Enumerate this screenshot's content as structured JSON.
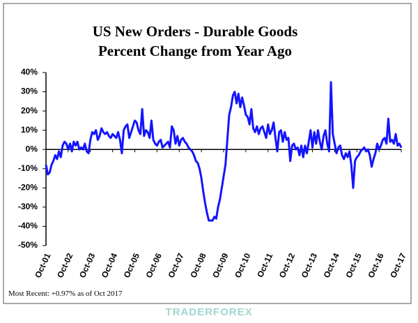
{
  "chart_data": {
    "type": "line",
    "title": "US New Orders - Durable Goods",
    "subtitle": "Percent Change from Year Ago",
    "note": "Most Recent: +0.97% as of Oct 2017",
    "watermark": "TRADERFOREX",
    "categories": [
      "Oct-01",
      null,
      null,
      null,
      null,
      null,
      null,
      null,
      null,
      null,
      null,
      null,
      "Oct-02",
      null,
      null,
      null,
      null,
      null,
      null,
      null,
      null,
      null,
      null,
      null,
      "Oct-03",
      null,
      null,
      null,
      null,
      null,
      null,
      null,
      null,
      null,
      null,
      null,
      "Oct-04",
      null,
      null,
      null,
      null,
      null,
      null,
      null,
      null,
      null,
      null,
      null,
      "Oct-05",
      null,
      null,
      null,
      null,
      null,
      null,
      null,
      null,
      null,
      null,
      null,
      "Oct-06",
      null,
      null,
      null,
      null,
      null,
      null,
      null,
      null,
      null,
      null,
      null,
      "Oct-07",
      null,
      null,
      null,
      null,
      null,
      null,
      null,
      null,
      null,
      null,
      null,
      "Oct-08",
      null,
      null,
      null,
      null,
      null,
      null,
      null,
      null,
      null,
      null,
      null,
      "Oct-09",
      null,
      null,
      null,
      null,
      null,
      null,
      null,
      null,
      null,
      null,
      null,
      "Oct-10",
      null,
      null,
      null,
      null,
      null,
      null,
      null,
      null,
      null,
      null,
      null,
      "Oct-11",
      null,
      null,
      null,
      null,
      null,
      null,
      null,
      null,
      null,
      null,
      null,
      "Oct-12",
      null,
      null,
      null,
      null,
      null,
      null,
      null,
      null,
      null,
      null,
      null,
      "Oct-13",
      null,
      null,
      null,
      null,
      null,
      null,
      null,
      null,
      null,
      null,
      null,
      "Oct-14",
      null,
      null,
      null,
      null,
      null,
      null,
      null,
      null,
      null,
      null,
      null,
      "Oct-15",
      null,
      null,
      null,
      null,
      null,
      null,
      null,
      null,
      null,
      null,
      null,
      "Oct-16",
      null,
      null,
      null,
      null,
      null,
      null,
      null,
      null,
      null,
      null,
      null,
      "Oct-17"
    ],
    "series": [
      {
        "color": "#1414ff",
        "values": [
          -8,
          -13,
          -12,
          -8,
          -6,
          -3,
          -5,
          -1,
          -4,
          2,
          4,
          3,
          0,
          3,
          -1,
          4,
          2,
          4,
          0,
          1,
          0,
          3,
          -1,
          -2,
          5,
          9,
          8,
          10,
          5,
          7,
          11,
          9,
          8,
          9,
          7,
          6,
          8,
          7,
          6,
          9,
          5,
          -2,
          10,
          12,
          13,
          6,
          9,
          12,
          15,
          14,
          10,
          8,
          21,
          7,
          10,
          9,
          6,
          15,
          5,
          3,
          2,
          4,
          5,
          1,
          2,
          3,
          4,
          1,
          12,
          10,
          3,
          7,
          2,
          5,
          6,
          4,
          3,
          1,
          0,
          -1,
          -3,
          -6,
          -7,
          -10,
          -15,
          -22,
          -28,
          -33,
          -37,
          -37,
          -37,
          -35,
          -36,
          -30,
          -26,
          -20,
          -14,
          -8,
          5,
          18,
          22,
          28,
          30,
          24,
          29,
          22,
          27,
          23,
          18,
          17,
          13,
          21,
          11,
          9,
          12,
          8,
          11,
          12,
          9,
          6,
          13,
          8,
          10,
          14,
          6,
          -1,
          9,
          10,
          4,
          9,
          5,
          6,
          -6,
          2,
          3,
          0,
          1,
          -3,
          2,
          -4,
          2,
          -2,
          4,
          10,
          1,
          9,
          3,
          10,
          4,
          0,
          7,
          10,
          3,
          -1,
          35,
          8,
          3,
          -2,
          1,
          2,
          -3,
          -5,
          -2,
          -4,
          -1,
          -8,
          -20,
          -6,
          -4,
          -3,
          -1,
          0,
          1,
          -1,
          0,
          -3,
          -9,
          -5,
          -2,
          3,
          0,
          2,
          5,
          6,
          3,
          16,
          4,
          5,
          3,
          8,
          2,
          3,
          0.97
        ]
      }
    ],
    "ylim": [
      -50,
      40
    ],
    "yticks": [
      {
        "value": -50,
        "label": "-50%"
      },
      {
        "value": -40,
        "label": "-40%"
      },
      {
        "value": -30,
        "label": "-30%"
      },
      {
        "value": -20,
        "label": "-20%"
      },
      {
        "value": -10,
        "label": "-10%"
      },
      {
        "value": 0,
        "label": "0%"
      },
      {
        "value": 10,
        "label": "10%"
      },
      {
        "value": 20,
        "label": "20%"
      },
      {
        "value": 30,
        "label": "30%"
      },
      {
        "value": 40,
        "label": "40%"
      }
    ]
  }
}
